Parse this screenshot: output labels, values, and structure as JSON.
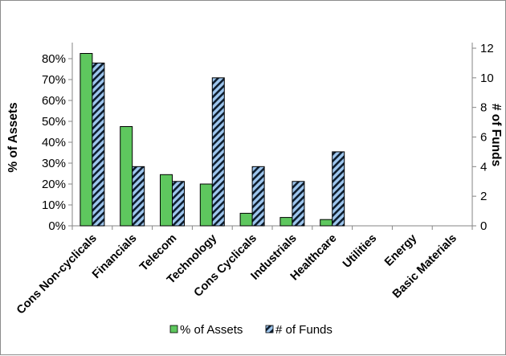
{
  "chart_data": {
    "type": "bar",
    "categories": [
      "Cons Non-cyclicals",
      "Financials",
      "Telecom",
      "Technology",
      "Cons Cyclicals",
      "Industrials",
      "Healthcare",
      "Utilities",
      "Energy",
      "Basic Materials"
    ],
    "series": [
      {
        "name": "% of Assets",
        "axis": "left",
        "values": [
          82.5,
          47.5,
          24.5,
          20,
          6,
          4,
          3,
          0,
          0,
          0
        ],
        "color": "#5ec75e",
        "pattern": "solid"
      },
      {
        "name": "# of Funds",
        "axis": "right",
        "values": [
          11,
          4,
          3,
          10,
          4,
          3,
          5,
          0,
          0,
          0
        ],
        "color": "#9ec6ee",
        "pattern": "diagonal-stripes"
      }
    ],
    "ylabel": "% of Assets",
    "y2label": "# of Funds",
    "ylim": [
      0,
      85
    ],
    "y2lim": [
      0,
      12
    ],
    "yticks": [
      "0%",
      "10%",
      "20%",
      "30%",
      "40%",
      "50%",
      "60%",
      "70%",
      "80%"
    ],
    "y2ticks": [
      "0",
      "2",
      "4",
      "6",
      "8",
      "10",
      "12"
    ],
    "grid": false,
    "legend_position": "bottom"
  }
}
